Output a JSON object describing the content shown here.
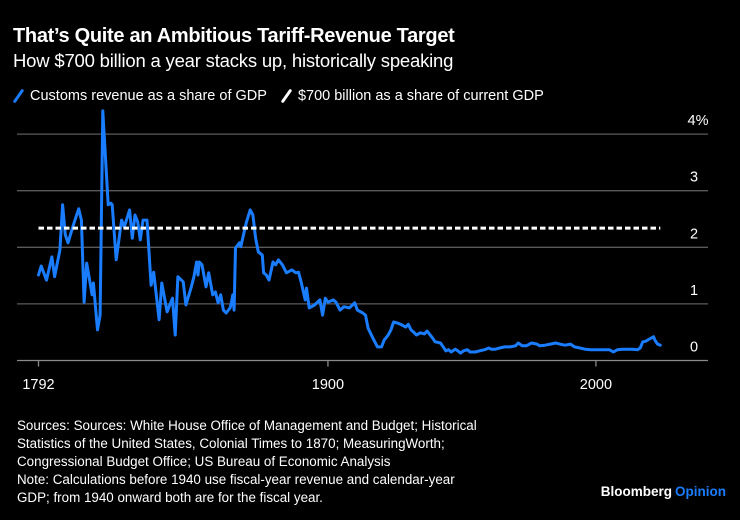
{
  "header": {
    "title": "That’s Quite an Ambitious Tariff-Revenue Target",
    "subtitle": "How $700 billion a year stacks up, historically speaking"
  },
  "legend": [
    {
      "label": "Customs revenue as a share of GDP",
      "color": "#1a7dff",
      "icon": "slash-line-icon"
    },
    {
      "label": "$700 billion as a share of current GDP",
      "color": "#ffffff",
      "icon": "slash-line-icon"
    }
  ],
  "footer": {
    "lines": [
      "Sources: Sources: White House Office of Management and Budget; Historical",
      "Statistics of the United States, Colonial Times to 1870; MeasuringWorth;",
      "Congressional Budget Office; US Bureau of Economic Analysis",
      "Note: Calculations before 1940 use fiscal-year revenue and calendar-year",
      "GDP; from 1940 onward both are for the fiscal year."
    ],
    "logo_brand": "Bloomberg",
    "logo_section": "Opinion"
  },
  "colors": {
    "background": "#000000",
    "series": "#1a7dff",
    "target": "#ffffff",
    "grid": "#5a5a5a",
    "axis": "#8a8a8a",
    "accent": "#1a7dff"
  },
  "chart_data": {
    "type": "line",
    "title": "That’s Quite an Ambitious Tariff-Revenue Target",
    "subtitle": "How $700 billion a year stacks up, historically speaking",
    "xlabel": "",
    "ylabel": "",
    "xlim": [
      1792,
      2024
    ],
    "ylim": [
      0,
      4
    ],
    "x_ticks": [
      1792,
      1900,
      2000
    ],
    "y_ticks": [
      {
        "value": 0,
        "label": "0"
      },
      {
        "value": 1,
        "label": "1"
      },
      {
        "value": 2,
        "label": "2"
      },
      {
        "value": 3,
        "label": "3"
      },
      {
        "value": 4,
        "label": "4%"
      }
    ],
    "y_axis_side": "right",
    "grid": true,
    "legend_position": "top-left",
    "series": [
      {
        "name": "Customs revenue as a share of GDP",
        "style": "solid",
        "points": [
          [
            1792,
            1.51
          ],
          [
            1793,
            1.67
          ],
          [
            1795,
            1.42
          ],
          [
            1797,
            1.83
          ],
          [
            1798,
            1.48
          ],
          [
            1800,
            1.95
          ],
          [
            1801,
            2.75
          ],
          [
            1802,
            2.22
          ],
          [
            1803,
            2.08
          ],
          [
            1805,
            2.39
          ],
          [
            1807,
            2.68
          ],
          [
            1808,
            2.48
          ],
          [
            1809,
            1.03
          ],
          [
            1810,
            1.72
          ],
          [
            1812,
            1.16
          ],
          [
            1812.5,
            1.37
          ],
          [
            1814,
            0.54
          ],
          [
            1815,
            0.8
          ],
          [
            1816,
            4.41
          ],
          [
            1818,
            2.75
          ],
          [
            1819,
            2.78
          ],
          [
            1819.5,
            2.75
          ],
          [
            1821,
            1.78
          ],
          [
            1823,
            2.48
          ],
          [
            1824,
            2.36
          ],
          [
            1826,
            2.66
          ],
          [
            1827,
            2.16
          ],
          [
            1828,
            2.57
          ],
          [
            1829,
            2.45
          ],
          [
            1830,
            2.13
          ],
          [
            1831,
            2.48
          ],
          [
            1832.5,
            2.48
          ],
          [
            1834,
            1.33
          ],
          [
            1835,
            1.56
          ],
          [
            1837,
            0.72
          ],
          [
            1838,
            1.37
          ],
          [
            1840,
            0.86
          ],
          [
            1842,
            1.1
          ],
          [
            1843,
            0.45
          ],
          [
            1844,
            1.48
          ],
          [
            1846,
            1.39
          ],
          [
            1847,
            0.98
          ],
          [
            1849,
            1.3
          ],
          [
            1850,
            1.48
          ],
          [
            1851,
            1.74
          ],
          [
            1851.5,
            1.51
          ],
          [
            1852,
            1.74
          ],
          [
            1853,
            1.69
          ],
          [
            1854.5,
            1.3
          ],
          [
            1855.5,
            1.55
          ],
          [
            1857,
            1.16
          ],
          [
            1858,
            1.21
          ],
          [
            1859,
            1.02
          ],
          [
            1860,
            1.16
          ],
          [
            1861,
            0.89
          ],
          [
            1862,
            0.84
          ],
          [
            1863.5,
            0.93
          ],
          [
            1864,
            1.03
          ],
          [
            1864.5,
            1.16
          ],
          [
            1865,
            0.89
          ],
          [
            1865.5,
            1.99
          ],
          [
            1867,
            2.08
          ],
          [
            1867.5,
            2.01
          ],
          [
            1869.5,
            2.43
          ],
          [
            1871,
            2.66
          ],
          [
            1872,
            2.57
          ],
          [
            1873,
            2.16
          ],
          [
            1874,
            1.92
          ],
          [
            1875.5,
            1.86
          ],
          [
            1876,
            1.55
          ],
          [
            1877,
            1.51
          ],
          [
            1878,
            1.42
          ],
          [
            1879.5,
            1.74
          ],
          [
            1880.5,
            1.69
          ],
          [
            1881.5,
            1.78
          ],
          [
            1883,
            1.69
          ],
          [
            1884.5,
            1.55
          ],
          [
            1886.5,
            1.6
          ],
          [
            1888,
            1.55
          ],
          [
            1889,
            1.56
          ],
          [
            1890,
            1.39
          ],
          [
            1891.5,
            1.07
          ],
          [
            1892,
            1.28
          ],
          [
            1893,
            0.93
          ],
          [
            1895,
            0.98
          ],
          [
            1897,
            1.07
          ],
          [
            1898,
            0.8
          ],
          [
            1899,
            1.1
          ],
          [
            1900,
            1.03
          ],
          [
            1902,
            1.07
          ],
          [
            1903,
            1.03
          ],
          [
            1904.5,
            0.89
          ],
          [
            1906,
            0.95
          ],
          [
            1908,
            0.93
          ],
          [
            1910,
            1.02
          ],
          [
            1911,
            0.89
          ],
          [
            1913,
            0.84
          ],
          [
            1914,
            0.8
          ],
          [
            1915,
            0.57
          ],
          [
            1916.5,
            0.42
          ],
          [
            1917.5,
            0.33
          ],
          [
            1918.5,
            0.24
          ],
          [
            1920,
            0.24
          ],
          [
            1921,
            0.36
          ],
          [
            1922.5,
            0.45
          ],
          [
            1923.5,
            0.54
          ],
          [
            1924.5,
            0.68
          ],
          [
            1926,
            0.66
          ],
          [
            1927.5,
            0.63
          ],
          [
            1929,
            0.59
          ],
          [
            1930,
            0.64
          ],
          [
            1931,
            0.54
          ],
          [
            1932,
            0.5
          ],
          [
            1933,
            0.45
          ],
          [
            1934.5,
            0.49
          ],
          [
            1936,
            0.47
          ],
          [
            1937,
            0.52
          ],
          [
            1939,
            0.4
          ],
          [
            1940,
            0.33
          ],
          [
            1942,
            0.31
          ],
          [
            1943,
            0.24
          ],
          [
            1944,
            0.17
          ],
          [
            1945,
            0.19
          ],
          [
            1946,
            0.15
          ],
          [
            1947.5,
            0.2
          ],
          [
            1948.5,
            0.17
          ],
          [
            1949.5,
            0.13
          ],
          [
            1950.5,
            0.17
          ],
          [
            1952,
            0.19
          ],
          [
            1953,
            0.15
          ],
          [
            1955,
            0.15
          ],
          [
            1956.5,
            0.17
          ],
          [
            1958.5,
            0.19
          ],
          [
            1960,
            0.22
          ],
          [
            1961,
            0.2
          ],
          [
            1962.5,
            0.2
          ],
          [
            1964,
            0.22
          ],
          [
            1966,
            0.24
          ],
          [
            1968,
            0.24
          ],
          [
            1970,
            0.26
          ],
          [
            1971,
            0.31
          ],
          [
            1972.5,
            0.26
          ],
          [
            1974,
            0.26
          ],
          [
            1976,
            0.31
          ],
          [
            1978,
            0.29
          ],
          [
            1979,
            0.26
          ],
          [
            1981,
            0.27
          ],
          [
            1983,
            0.29
          ],
          [
            1985,
            0.31
          ],
          [
            1986.5,
            0.29
          ],
          [
            1988.5,
            0.27
          ],
          [
            1990.5,
            0.29
          ],
          [
            1992,
            0.24
          ],
          [
            1994,
            0.22
          ],
          [
            1996,
            0.2
          ],
          [
            1998,
            0.19
          ],
          [
            2000,
            0.19
          ],
          [
            2001.5,
            0.19
          ],
          [
            2003.5,
            0.19
          ],
          [
            2005,
            0.19
          ],
          [
            2006.5,
            0.15
          ],
          [
            2008,
            0.19
          ],
          [
            2010,
            0.2
          ],
          [
            2011.5,
            0.2
          ],
          [
            2013.5,
            0.2
          ],
          [
            2015.5,
            0.19
          ],
          [
            2016.5,
            0.22
          ],
          [
            2017.5,
            0.33
          ],
          [
            2018.5,
            0.34
          ],
          [
            2020,
            0.38
          ],
          [
            2021.5,
            0.42
          ],
          [
            2022,
            0.36
          ],
          [
            2023,
            0.29
          ],
          [
            2024,
            0.27
          ]
        ]
      },
      {
        "name": "$700 billion as a share of current GDP",
        "style": "dashed",
        "points": [
          [
            1792,
            2.34
          ],
          [
            2024,
            2.34
          ]
        ]
      }
    ]
  }
}
